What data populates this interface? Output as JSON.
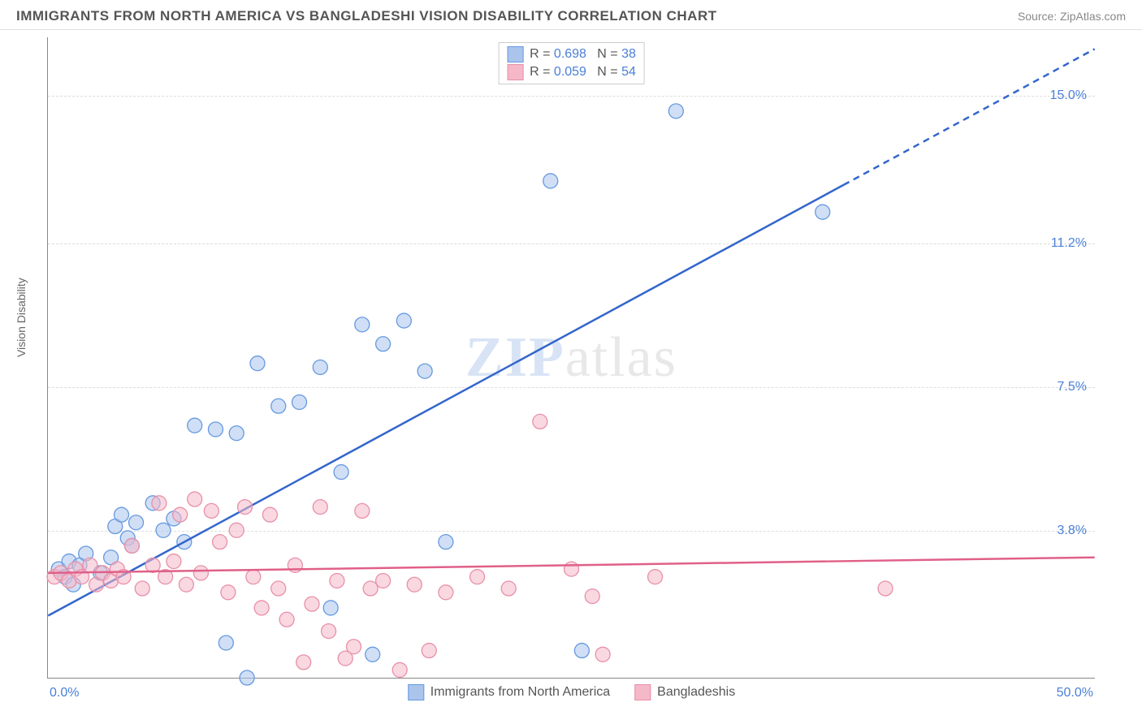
{
  "header": {
    "title": "IMMIGRANTS FROM NORTH AMERICA VS BANGLADESHI VISION DISABILITY CORRELATION CHART",
    "source": "Source: ZipAtlas.com"
  },
  "watermark": {
    "part1": "ZIP",
    "part2": "atlas"
  },
  "chart": {
    "type": "scatter",
    "ylabel": "Vision Disability",
    "xlim": [
      0,
      50
    ],
    "ylim": [
      0,
      16.5
    ],
    "xtick_labels": [
      "0.0%",
      "50.0%"
    ],
    "yticks": [
      {
        "v": 3.8,
        "label": "3.8%"
      },
      {
        "v": 7.5,
        "label": "7.5%"
      },
      {
        "v": 11.2,
        "label": "11.2%"
      },
      {
        "v": 15.0,
        "label": "15.0%"
      }
    ],
    "background_color": "#ffffff",
    "grid_color": "#dddddd",
    "axis_color": "#888888",
    "tick_color": "#4a7fd8",
    "marker_radius": 9,
    "marker_opacity": 0.55,
    "line_width": 2.5,
    "series": [
      {
        "name": "Immigrants from North America",
        "color": "#6699e0",
        "fill": "#aac4ec",
        "line_color": "#3366cc",
        "R": "0.698",
        "N": "38",
        "trend": {
          "x1": 0,
          "y1": 1.6,
          "x2": 50,
          "y2": 16.2,
          "dash_after_x": 38
        },
        "points": [
          [
            0.5,
            2.8
          ],
          [
            0.8,
            2.6
          ],
          [
            1.0,
            3.0
          ],
          [
            1.2,
            2.4
          ],
          [
            1.5,
            2.9
          ],
          [
            1.8,
            3.2
          ],
          [
            2.5,
            2.7
          ],
          [
            3.0,
            3.1
          ],
          [
            3.2,
            3.9
          ],
          [
            3.5,
            4.2
          ],
          [
            3.8,
            3.6
          ],
          [
            4.0,
            3.4
          ],
          [
            4.2,
            4.0
          ],
          [
            5.0,
            4.5
          ],
          [
            5.5,
            3.8
          ],
          [
            6.0,
            4.1
          ],
          [
            6.5,
            3.5
          ],
          [
            7.0,
            6.5
          ],
          [
            8.0,
            6.4
          ],
          [
            9.0,
            6.3
          ],
          [
            10.0,
            8.1
          ],
          [
            11.0,
            7.0
          ],
          [
            12.0,
            7.1
          ],
          [
            13.0,
            8.0
          ],
          [
            14.0,
            5.3
          ],
          [
            15.0,
            9.1
          ],
          [
            16.0,
            8.6
          ],
          [
            17.0,
            9.2
          ],
          [
            18.0,
            7.9
          ],
          [
            19.0,
            3.5
          ],
          [
            8.5,
            0.9
          ],
          [
            9.5,
            0.0
          ],
          [
            13.5,
            1.8
          ],
          [
            15.5,
            0.6
          ],
          [
            24.0,
            12.8
          ],
          [
            25.5,
            0.7
          ],
          [
            30.0,
            14.6
          ],
          [
            37.0,
            12.0
          ]
        ]
      },
      {
        "name": "Bangladeshis",
        "color": "#e890a8",
        "fill": "#f4b8c8",
        "line_color": "#e06088",
        "R": "0.059",
        "N": "54",
        "trend": {
          "x1": 0,
          "y1": 2.7,
          "x2": 50,
          "y2": 3.1,
          "dash_after_x": 50
        },
        "points": [
          [
            0.3,
            2.6
          ],
          [
            0.6,
            2.7
          ],
          [
            1.0,
            2.5
          ],
          [
            1.3,
            2.8
          ],
          [
            1.6,
            2.6
          ],
          [
            2.0,
            2.9
          ],
          [
            2.3,
            2.4
          ],
          [
            2.6,
            2.7
          ],
          [
            3.0,
            2.5
          ],
          [
            3.3,
            2.8
          ],
          [
            3.6,
            2.6
          ],
          [
            4.0,
            3.4
          ],
          [
            4.5,
            2.3
          ],
          [
            5.0,
            2.9
          ],
          [
            5.3,
            4.5
          ],
          [
            5.6,
            2.6
          ],
          [
            6.0,
            3.0
          ],
          [
            6.3,
            4.2
          ],
          [
            6.6,
            2.4
          ],
          [
            7.0,
            4.6
          ],
          [
            7.3,
            2.7
          ],
          [
            7.8,
            4.3
          ],
          [
            8.2,
            3.5
          ],
          [
            8.6,
            2.2
          ],
          [
            9.0,
            3.8
          ],
          [
            9.4,
            4.4
          ],
          [
            9.8,
            2.6
          ],
          [
            10.2,
            1.8
          ],
          [
            10.6,
            4.2
          ],
          [
            11.0,
            2.3
          ],
          [
            11.4,
            1.5
          ],
          [
            11.8,
            2.9
          ],
          [
            12.2,
            0.4
          ],
          [
            12.6,
            1.9
          ],
          [
            13.0,
            4.4
          ],
          [
            13.4,
            1.2
          ],
          [
            13.8,
            2.5
          ],
          [
            14.2,
            0.5
          ],
          [
            14.6,
            0.8
          ],
          [
            15.0,
            4.3
          ],
          [
            15.4,
            2.3
          ],
          [
            16.0,
            2.5
          ],
          [
            16.8,
            0.2
          ],
          [
            17.5,
            2.4
          ],
          [
            18.2,
            0.7
          ],
          [
            19.0,
            2.2
          ],
          [
            20.5,
            2.6
          ],
          [
            22.0,
            2.3
          ],
          [
            23.5,
            6.6
          ],
          [
            25.0,
            2.8
          ],
          [
            26.0,
            2.1
          ],
          [
            26.5,
            0.6
          ],
          [
            29.0,
            2.6
          ],
          [
            40.0,
            2.3
          ]
        ]
      }
    ],
    "legend_bottom": [
      {
        "label": "Immigrants from North America",
        "fill": "#aac4ec",
        "border": "#6699e0"
      },
      {
        "label": "Bangladeshis",
        "fill": "#f4b8c8",
        "border": "#e890a8"
      }
    ]
  }
}
